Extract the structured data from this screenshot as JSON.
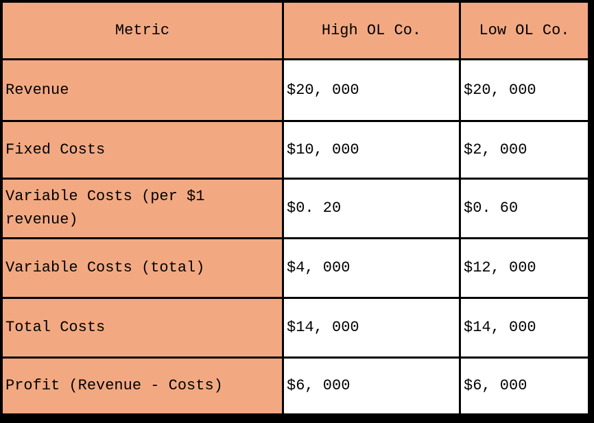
{
  "title": "Operating leverage comparison table",
  "colors": {
    "page_bg": "#000000",
    "header_bg": "#F2A982",
    "cell_bg": "#FFFFFF",
    "border": "#000000",
    "text": "#000000"
  },
  "chart_data": {
    "type": "table",
    "columns": [
      "Metric",
      "High OL Co.",
      "Low OL Co."
    ],
    "rows": [
      [
        "Revenue",
        "$20, 000",
        "$20, 000"
      ],
      [
        "Fixed Costs",
        "$10, 000",
        "$2, 000"
      ],
      [
        "Variable Costs (per $1 revenue)",
        "$0. 20",
        "$0. 60"
      ],
      [
        "Variable Costs (total)",
        "$4, 000",
        "$12, 000"
      ],
      [
        "Total Costs",
        "$14, 000",
        "$14, 000"
      ],
      [
        "Profit (Revenue - Costs)",
        "$6, 000",
        "$6, 000"
      ]
    ],
    "numeric_values": {
      "categories": [
        "Revenue",
        "Fixed Costs",
        "Variable Costs (per $1 revenue)",
        "Variable Costs (total)",
        "Total Costs",
        "Profit (Revenue - Costs)"
      ],
      "series": [
        {
          "name": "High OL Co.",
          "values": [
            20000,
            10000,
            0.2,
            4000,
            14000,
            6000
          ]
        },
        {
          "name": "Low OL Co.",
          "values": [
            20000,
            2000,
            0.6,
            12000,
            14000,
            6000
          ]
        }
      ]
    }
  }
}
